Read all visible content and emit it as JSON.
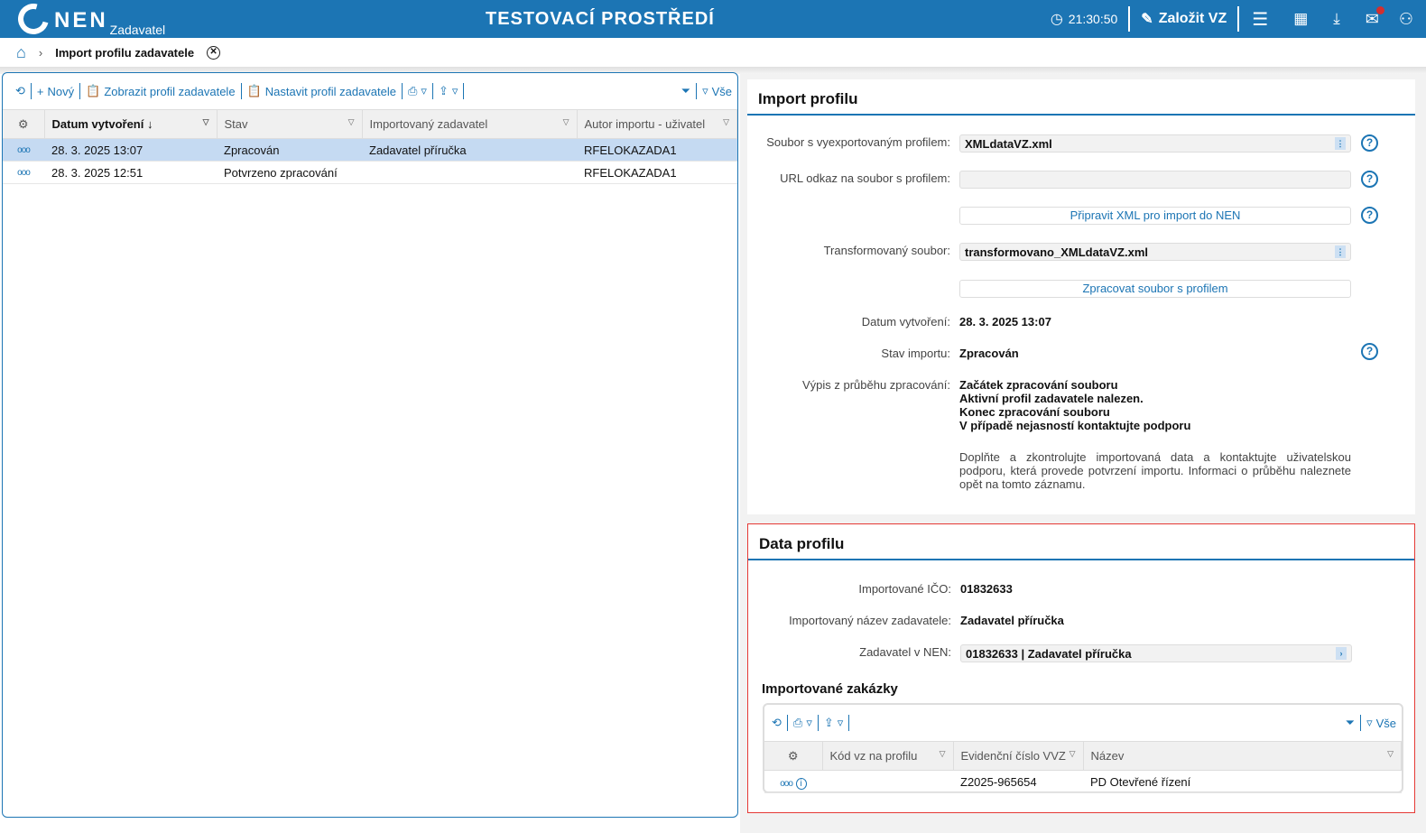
{
  "header": {
    "logo": "NEN",
    "logo_sub": "Zadavatel",
    "title": "TESTOVACÍ PROSTŘEDÍ",
    "time": "21:30:50",
    "create_label": "Založit VZ"
  },
  "breadcrumb": {
    "current": "Import profilu zadavatele"
  },
  "left": {
    "toolbar": {
      "new": "Nový",
      "show": "Zobrazit profil zadavatele",
      "set": "Nastavit profil zadavatele",
      "all": "Vše"
    },
    "columns": [
      "Datum vytvoření",
      "Stav",
      "Importovaný zadavatel",
      "Autor importu - uživatel"
    ],
    "rows": [
      [
        "28. 3. 2025 13:07",
        "Zpracován",
        "Zadavatel příručka",
        "RFELOKAZADA1"
      ],
      [
        "28. 3. 2025 12:51",
        "Potvrzeno zpracování",
        "",
        "RFELOKAZADA1"
      ]
    ]
  },
  "import": {
    "title": "Import profilu",
    "file_label": "Soubor s vyexportovaným profilem:",
    "file_value": "XMLdataVZ.xml",
    "url_label": "URL odkaz na soubor s profilem:",
    "url_value": "",
    "prepare_btn": "Připravit XML pro import do NEN",
    "trans_label": "Transformovaný soubor:",
    "trans_value": "transformovano_XMLdataVZ.xml",
    "process_btn": "Zpracovat soubor s profilem",
    "date_label": "Datum vytvoření:",
    "date_value": "28. 3. 2025 13:07",
    "state_label": "Stav importu:",
    "state_value": "Zpracován",
    "log_label": "Výpis z průběhu zpracování:",
    "log": [
      "Začátek zpracování souboru",
      "Aktivní profil zadavatele nalezen.",
      "Konec zpracování souboru",
      "V případě nejasností kontaktujte podporu"
    ],
    "note": "Doplňte a zkontrolujte importovaná data a kontaktujte uživatelskou podporu, která provede potvrzení importu. Informaci o průběhu naleznete opět na tomto záznamu."
  },
  "data": {
    "title": "Data profilu",
    "ico_label": "Importované IČO:",
    "ico_value": "01832633",
    "name_label": "Importovaný název zadavatele:",
    "name_value": "Zadavatel příručka",
    "nen_label": "Zadavatel v NEN:",
    "nen_value": "01832633 | Zadavatel příručka",
    "orders_title": "Importované zakázky",
    "all": "Vše",
    "columns": [
      "Kód vz na profilu",
      "Evidenční číslo VVZ",
      "Název"
    ],
    "rows": [
      [
        "",
        "Z2025-965654",
        "PD Otevřené řízení"
      ]
    ]
  },
  "colors": {
    "primary": "#1c75b4",
    "selected_row": "#c5daf2",
    "highlight_border": "#e53935"
  }
}
